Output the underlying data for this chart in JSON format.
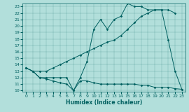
{
  "xlabel": "Humidex (Indice chaleur)",
  "ylabel": "",
  "background_color": "#b2dfdb",
  "line_color": "#006060",
  "xlim": [
    -0.5,
    23.5
  ],
  "ylim": [
    9.8,
    23.5
  ],
  "xticks": [
    0,
    1,
    2,
    3,
    4,
    5,
    6,
    7,
    8,
    9,
    10,
    11,
    12,
    13,
    14,
    15,
    16,
    17,
    18,
    19,
    20,
    21,
    22,
    23
  ],
  "yticks": [
    10,
    11,
    12,
    13,
    14,
    15,
    16,
    17,
    18,
    19,
    20,
    21,
    22,
    23
  ],
  "series1_x": [
    0,
    1,
    2,
    3,
    4,
    5,
    6,
    7,
    8,
    9,
    10,
    11,
    12,
    13,
    14,
    15,
    16,
    17,
    18,
    19,
    20,
    21,
    22,
    23
  ],
  "series1_y": [
    13.5,
    13.0,
    12.0,
    11.8,
    11.5,
    11.2,
    11.0,
    10.0,
    11.5,
    11.5,
    11.2,
    11.0,
    11.0,
    11.0,
    11.0,
    11.0,
    11.0,
    10.8,
    10.8,
    10.5,
    10.5,
    10.5,
    10.3,
    10.2
  ],
  "series2_x": [
    0,
    1,
    2,
    3,
    4,
    5,
    6,
    7,
    8,
    9,
    10,
    11,
    12,
    13,
    14,
    15,
    16,
    17,
    18,
    19,
    20,
    21,
    22
  ],
  "series2_y": [
    13.5,
    13.0,
    13.0,
    13.0,
    13.5,
    14.0,
    14.5,
    15.0,
    15.5,
    16.0,
    16.5,
    17.0,
    17.5,
    17.8,
    18.5,
    19.5,
    20.5,
    21.5,
    22.0,
    22.5,
    22.5,
    22.5,
    22.0
  ],
  "series3_x": [
    0,
    1,
    2,
    3,
    4,
    5,
    6,
    7,
    8,
    9,
    10,
    11,
    12,
    13,
    14,
    15,
    16,
    17,
    18,
    19,
    20,
    21,
    22,
    23
  ],
  "series3_y": [
    13.5,
    13.0,
    12.0,
    12.0,
    12.0,
    12.0,
    12.0,
    10.0,
    12.0,
    14.5,
    19.5,
    21.0,
    19.5,
    21.0,
    21.5,
    23.5,
    23.0,
    23.0,
    22.5,
    22.5,
    22.5,
    17.8,
    13.0,
    10.2
  ]
}
